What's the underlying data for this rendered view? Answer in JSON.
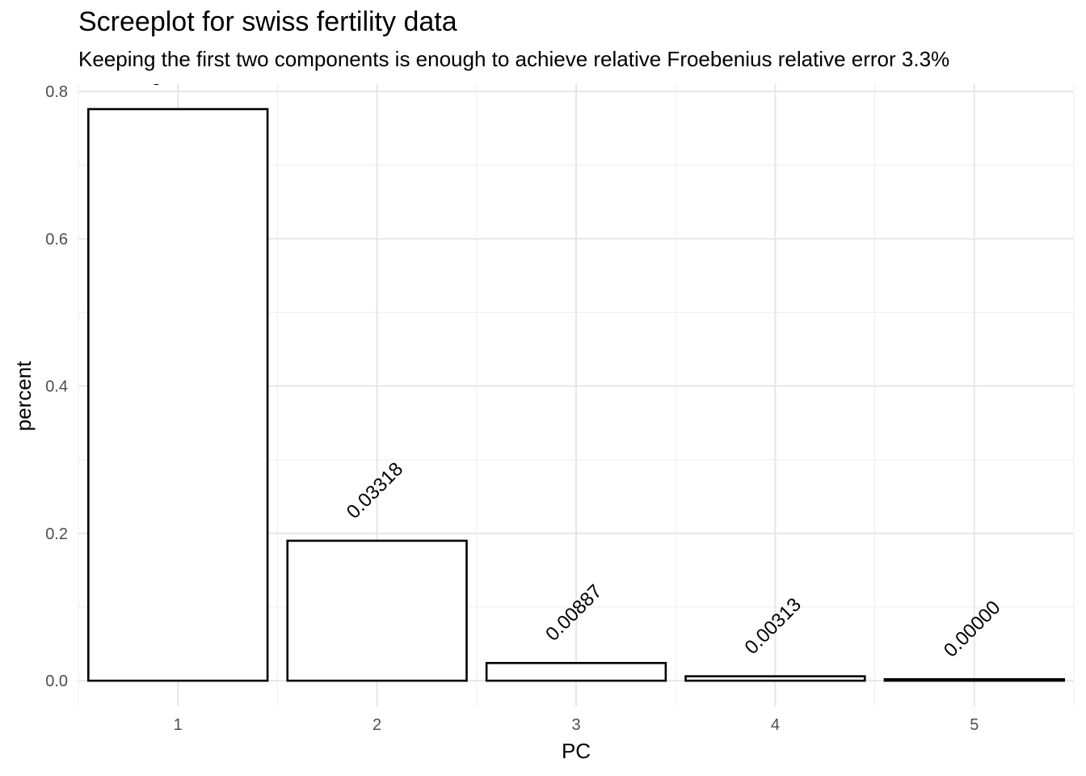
{
  "chart_data": {
    "type": "bar",
    "title": "Screeplot for swiss fertility data",
    "subtitle": "Keeping the first two components is enough to achieve relative Froebenius relative error 3.3%",
    "xlabel": "PC",
    "ylabel": "percent",
    "categories": [
      "1",
      "2",
      "3",
      "4",
      "5"
    ],
    "values": [
      0.776,
      0.19,
      0.024,
      0.006,
      0.002
    ],
    "bar_labels": [
      "C",
      "0.03318",
      "0.00887",
      "0.00313",
      "0.00000"
    ],
    "ylim": [
      -0.035,
      0.81
    ],
    "yticks": [
      0.0,
      0.2,
      0.4,
      0.6,
      0.8
    ],
    "ytick_labels": [
      "0.0",
      "0.2",
      "0.4",
      "0.6",
      "0.8"
    ],
    "grid": true,
    "bar_fill": "#ffffff",
    "bar_stroke": "#000000"
  }
}
